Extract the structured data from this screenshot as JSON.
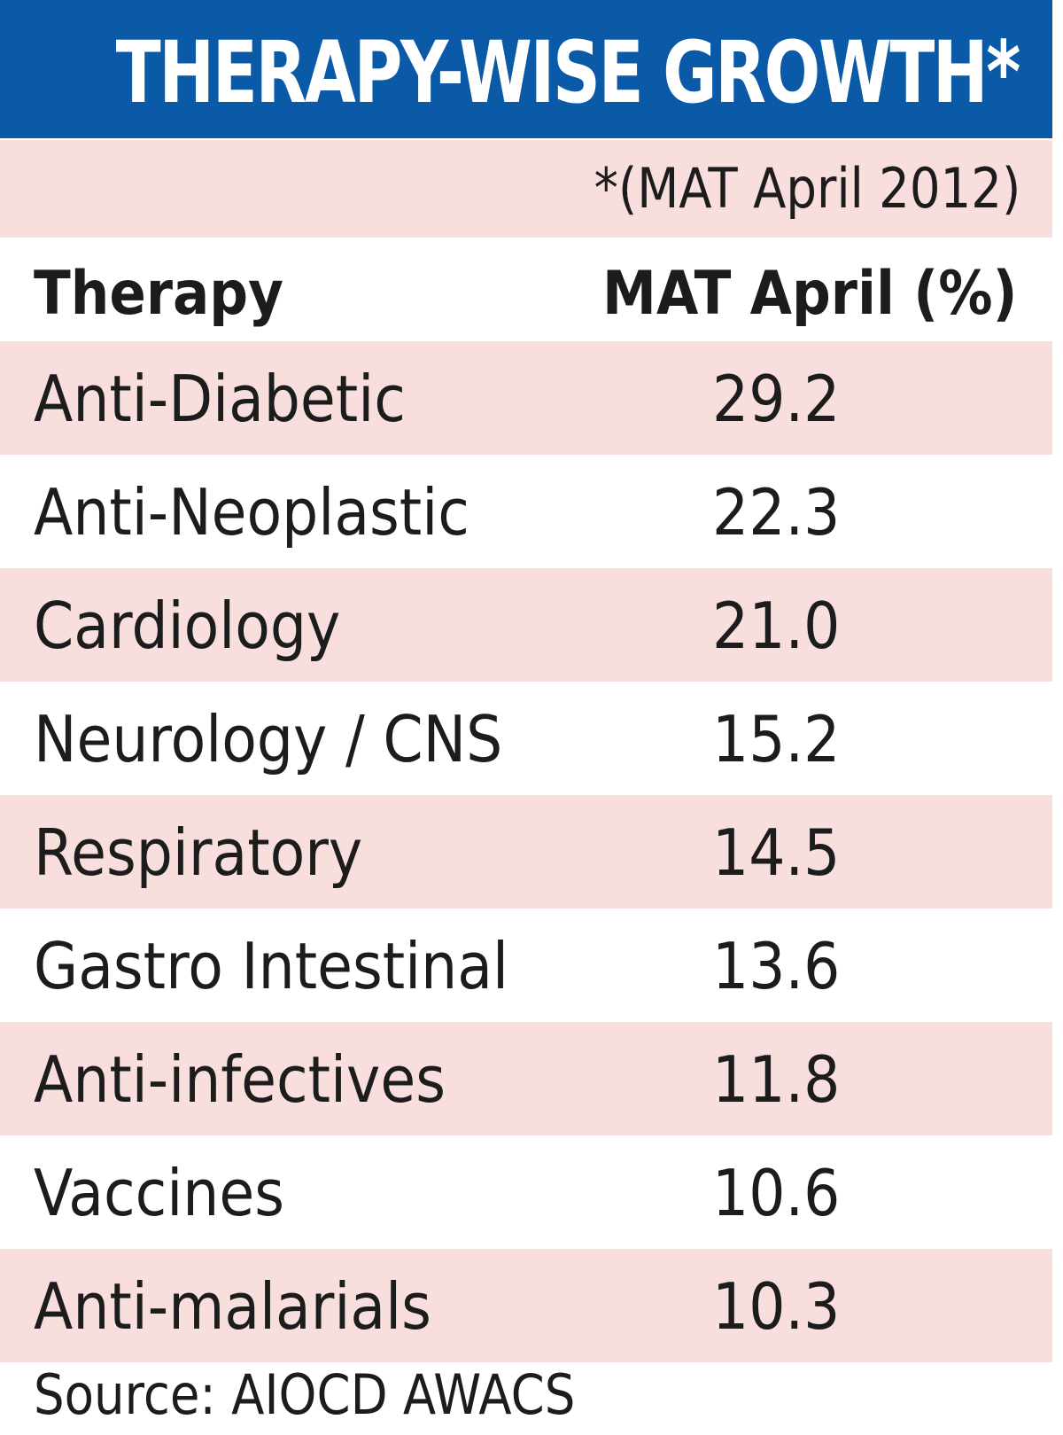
{
  "header": {
    "title": "THERAPY-WISE GROWTH*",
    "subtitle": "*(MAT April 2012)"
  },
  "columns": {
    "label": "Therapy",
    "value": "MAT April (%)"
  },
  "source": "Source: AIOCD AWACS",
  "colors": {
    "banner": "#0a5aa8",
    "row_shade": "#f9dede",
    "text": "#1c1c1c"
  },
  "chart_data": {
    "type": "table",
    "title": "THERAPY-WISE GROWTH*",
    "subtitle": "*(MAT April 2012)",
    "columns": [
      "Therapy",
      "MAT April (%)"
    ],
    "rows": [
      {
        "label": "Anti-Diabetic",
        "value": "29.2"
      },
      {
        "label": "Anti-Neoplastic",
        "value": "22.3"
      },
      {
        "label": "Cardiology",
        "value": "21.0"
      },
      {
        "label": "Neurology / CNS",
        "value": "15.2"
      },
      {
        "label": "Respiratory",
        "value": "14.5"
      },
      {
        "label": "Gastro Intestinal",
        "value": "13.6"
      },
      {
        "label": "Anti-infectives",
        "value": "11.8"
      },
      {
        "label": "Vaccines",
        "value": "10.6"
      },
      {
        "label": "Anti-malarials",
        "value": "10.3"
      }
    ],
    "source": "Source: AIOCD AWACS"
  }
}
